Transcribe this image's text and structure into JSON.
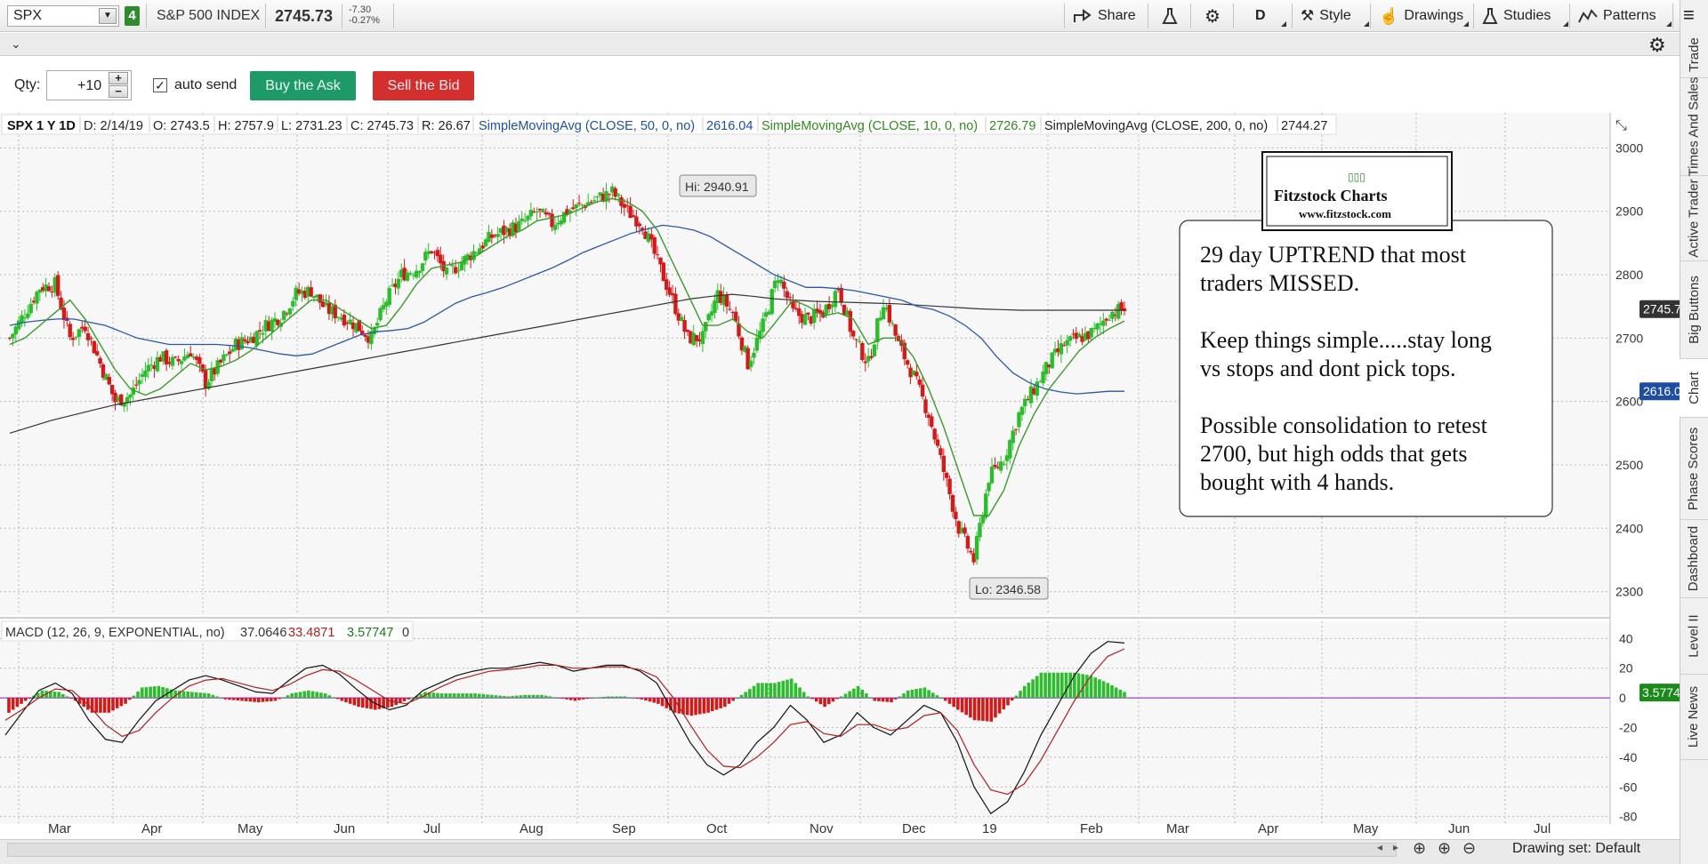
{
  "toolbar": {
    "symbol": "SPX",
    "link_number": "4",
    "instrument_name": "S&P 500 INDEX",
    "last_price": "2745.73",
    "change": "-7.30",
    "change_pct": "-0.27%",
    "share_label": "Share",
    "period_label": "D",
    "style_label": "Style",
    "drawings_label": "Drawings",
    "studies_label": "Studies",
    "patterns_label": "Patterns"
  },
  "order": {
    "qty_label": "Qty:",
    "qty_value": "+10",
    "auto_send_label": "auto send",
    "buy_label": "Buy the Ask",
    "sell_label": "Sell the Bid"
  },
  "side_tabs": [
    "Trade",
    "Times And Sales",
    "Active Trader",
    "Big Buttons",
    "Chart",
    "Phase Scores",
    "Dashboard",
    "Level II",
    "Live News"
  ],
  "status": {
    "drawing_set": "Drawing set: Default"
  },
  "chart_header": {
    "symbol_period": "SPX 1 Y 1D",
    "date": "D: 2/14/19",
    "open": "O: 2743.5",
    "high": "H: 2757.9",
    "low": "L: 2731.23",
    "close": "C: 2745.73",
    "range": "R: 26.67",
    "sma50_label": "SimpleMovingAvg (CLOSE, 50, 0, no)",
    "sma50_value": "2616.04",
    "sma10_label": "SimpleMovingAvg (CLOSE, 10, 0, no)",
    "sma10_value": "2726.79",
    "sma200_label": "SimpleMovingAvg (CLOSE, 200, 0, no)",
    "sma200_value": "2744.27"
  },
  "macd_header": {
    "label": "MACD (12, 26, 9, EXPONENTIAL, no)",
    "value": "37.0646",
    "avg": "33.4871",
    "diff": "3.57747",
    "zero": "0"
  },
  "annotation": {
    "logo_title": "Fitzstock Charts",
    "logo_url": "www.fitzstock.com",
    "lines": [
      "29 day UPTREND that most",
      "traders MISSED.",
      "",
      "Keep things simple.....stay long",
      "vs stops and dont pick tops.",
      "",
      "Possible consolidation to retest",
      "2700, but high odds that gets",
      "bought with 4 hands."
    ]
  },
  "colors": {
    "up": "#2bbd2b",
    "down": "#d21a1a",
    "sma10": "#3a9a2a",
    "sma50": "#2a58a8",
    "sma200": "#333333",
    "macd_value": "#111111",
    "macd_avg": "#b02020",
    "zero_line": "#a040d0"
  },
  "chart_data": [
    {
      "type": "candlestick",
      "title": "SPX 1 Y 1D",
      "x_ticks": [
        "Mar",
        "Apr",
        "May",
        "Jun",
        "Jul",
        "Aug",
        "Sep",
        "Oct",
        "Nov",
        "Dec",
        "19",
        "Feb",
        "Mar",
        "Apr",
        "May",
        "Jun",
        "Jul"
      ],
      "y_ticks": [
        2300,
        2400,
        2500,
        2600,
        2700,
        2800,
        2900,
        3000
      ],
      "ylim": [
        2270,
        3030
      ],
      "grid": true,
      "hi_label": "Hi: 2940.91",
      "lo_label": "Lo: 2346.58",
      "price_marker": "2745.73",
      "sma50_marker": "2616.04",
      "closes_weekly": [
        2700,
        2740,
        2780,
        2785,
        2700,
        2720,
        2660,
        2600,
        2610,
        2650,
        2670,
        2660,
        2680,
        2630,
        2660,
        2690,
        2700,
        2720,
        2735,
        2770,
        2775,
        2745,
        2735,
        2720,
        2700,
        2760,
        2800,
        2810,
        2840,
        2800,
        2820,
        2840,
        2860,
        2870,
        2880,
        2900,
        2880,
        2900,
        2910,
        2920,
        2930,
        2900,
        2880,
        2820,
        2760,
        2700,
        2700,
        2770,
        2740,
        2660,
        2720,
        2800,
        2740,
        2730,
        2740,
        2780,
        2700,
        2660,
        2760,
        2690,
        2640,
        2580,
        2490,
        2400,
        2350,
        2480,
        2510,
        2580,
        2620,
        2660,
        2690,
        2700,
        2710,
        2740,
        2746
      ],
      "sma10_weekly": [
        2690,
        2700,
        2720,
        2740,
        2760,
        2730,
        2690,
        2650,
        2620,
        2610,
        2620,
        2640,
        2660,
        2650,
        2655,
        2665,
        2680,
        2700,
        2720,
        2740,
        2760,
        2760,
        2745,
        2730,
        2715,
        2720,
        2750,
        2785,
        2810,
        2815,
        2820,
        2830,
        2845,
        2860,
        2870,
        2885,
        2890,
        2895,
        2905,
        2915,
        2920,
        2915,
        2900,
        2870,
        2820,
        2770,
        2720,
        2720,
        2730,
        2710,
        2700,
        2730,
        2760,
        2750,
        2735,
        2740,
        2730,
        2690,
        2700,
        2700,
        2670,
        2620,
        2560,
        2490,
        2420,
        2420,
        2460,
        2530,
        2580,
        2620,
        2650,
        2680,
        2700,
        2715,
        2727
      ],
      "sma50_weekly": [
        2720,
        2725,
        2728,
        2730,
        2730,
        2725,
        2720,
        2710,
        2700,
        2695,
        2690,
        2690,
        2690,
        2690,
        2688,
        2685,
        2680,
        2675,
        2672,
        2675,
        2685,
        2695,
        2705,
        2710,
        2712,
        2715,
        2725,
        2740,
        2755,
        2765,
        2772,
        2780,
        2790,
        2800,
        2810,
        2822,
        2835,
        2845,
        2855,
        2865,
        2872,
        2878,
        2875,
        2870,
        2860,
        2845,
        2830,
        2815,
        2800,
        2790,
        2780,
        2780,
        2778,
        2775,
        2770,
        2765,
        2760,
        2750,
        2745,
        2735,
        2720,
        2700,
        2670,
        2645,
        2630,
        2620,
        2615,
        2612,
        2614,
        2616,
        2616
      ],
      "sma200_weekly": [
        2550,
        2560,
        2570,
        2578,
        2586,
        2594,
        2600,
        2606,
        2612,
        2618,
        2624,
        2630,
        2636,
        2642,
        2648,
        2654,
        2660,
        2666,
        2672,
        2678,
        2684,
        2690,
        2696,
        2702,
        2708,
        2714,
        2720,
        2726,
        2732,
        2738,
        2744,
        2750,
        2756,
        2762,
        2766,
        2769,
        2766,
        2762,
        2760,
        2758,
        2757,
        2756,
        2755,
        2754,
        2752,
        2750,
        2748,
        2746,
        2745,
        2744,
        2744,
        2744,
        2744,
        2744,
        2744
      ]
    },
    {
      "type": "bar",
      "title": "MACD (12, 26, 9, EXPONENTIAL, no)",
      "y_ticks": [
        40,
        20,
        0,
        -20,
        -40,
        -60,
        -80
      ],
      "ylim": [
        -82,
        45
      ],
      "diff_marker": "3.57747",
      "macd_weekly": [
        -25,
        -10,
        5,
        10,
        3,
        -15,
        -28,
        -30,
        -15,
        -2,
        5,
        12,
        15,
        12,
        8,
        4,
        3,
        12,
        20,
        22,
        16,
        6,
        -3,
        -8,
        -5,
        5,
        10,
        15,
        18,
        20,
        20,
        22,
        24,
        22,
        18,
        20,
        22,
        22,
        18,
        10,
        -10,
        -30,
        -45,
        -52,
        -45,
        -30,
        -20,
        -5,
        -15,
        -30,
        -25,
        -10,
        -20,
        -25,
        -15,
        -5,
        -10,
        -30,
        -60,
        -78,
        -70,
        -50,
        -25,
        -5,
        15,
        30,
        38,
        37
      ],
      "avg_weekly": [
        -15,
        -8,
        0,
        6,
        5,
        -5,
        -18,
        -26,
        -22,
        -10,
        0,
        8,
        12,
        13,
        10,
        7,
        5,
        9,
        15,
        19,
        18,
        12,
        5,
        -2,
        -4,
        1,
        7,
        12,
        15,
        18,
        19,
        20,
        22,
        22,
        20,
        20,
        21,
        21,
        19,
        14,
        0,
        -18,
        -35,
        -46,
        -47,
        -40,
        -30,
        -18,
        -16,
        -24,
        -26,
        -18,
        -18,
        -22,
        -20,
        -12,
        -10,
        -22,
        -45,
        -62,
        -65,
        -58,
        -42,
        -22,
        -2,
        15,
        28,
        33
      ],
      "hist_weekly": [
        -10,
        -2,
        5,
        4,
        -2,
        -10,
        -10,
        -4,
        7,
        8,
        5,
        4,
        3,
        -1,
        -2,
        -3,
        -2,
        3,
        5,
        3,
        -2,
        -6,
        -8,
        -6,
        -1,
        4,
        3,
        3,
        3,
        2,
        1,
        2,
        2,
        0,
        -2,
        0,
        1,
        1,
        -1,
        -4,
        -10,
        -12,
        -10,
        -6,
        2,
        10,
        10,
        13,
        1,
        -6,
        1,
        8,
        -2,
        -3,
        5,
        7,
        0,
        -8,
        -15,
        -16,
        -5,
        8,
        17,
        17,
        17,
        15,
        10,
        4
      ]
    }
  ]
}
